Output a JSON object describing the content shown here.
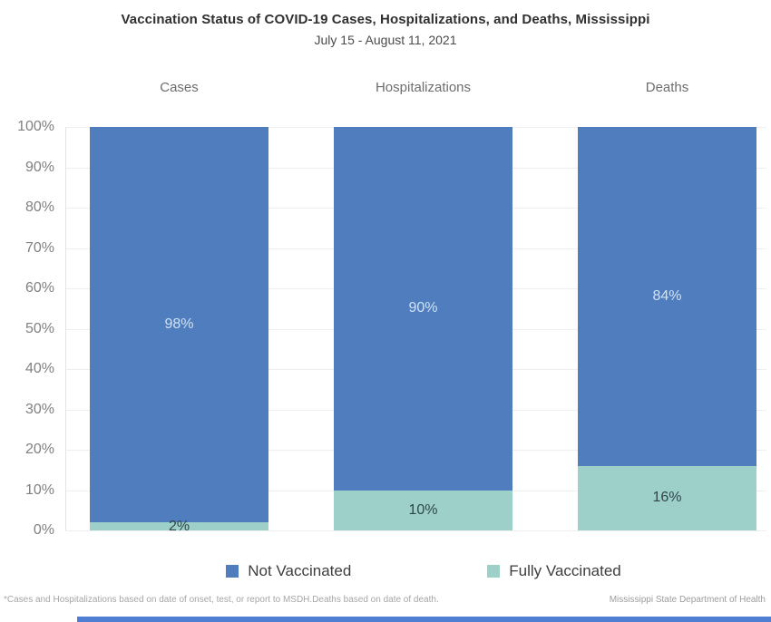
{
  "chart_data": {
    "type": "bar",
    "stacked": true,
    "title": "Vaccination Status of COVID-19 Cases, Hospitalizations, and Deaths, Mississippi",
    "subtitle": "July 15 - August 11, 2021",
    "categories": [
      "Cases",
      "Hospitalizations",
      "Deaths"
    ],
    "series": [
      {
        "name": "Not Vaccinated",
        "values": [
          98,
          90,
          84
        ],
        "value_labels": [
          "98%",
          "90%",
          "84%"
        ],
        "color": "#4f7dbe",
        "label_color": "#cfe2f6"
      },
      {
        "name": "Fully Vaccinated",
        "values": [
          2,
          10,
          16
        ],
        "value_labels": [
          "2%",
          "10%",
          "16%"
        ],
        "color": "#9dd0c8",
        "label_color": "#30454d"
      }
    ],
    "y_ticks": [
      "0%",
      "10%",
      "20%",
      "30%",
      "40%",
      "50%",
      "60%",
      "70%",
      "80%",
      "90%",
      "100%"
    ],
    "ylim": [
      0,
      100
    ],
    "grid": true,
    "legend_position": "bottom",
    "footnote_left": "*Cases and Hospitalizations based on date of onset, test, or report to MSDH.Deaths based on date of death.",
    "footnote_right": "Mississippi State Department of Health"
  },
  "colors": {
    "not_vaccinated": "#4f7dbe",
    "fully_vaccinated": "#9dd0c8",
    "bottom_strip": "#4e7fd2",
    "gridline": "#eeeeee"
  }
}
